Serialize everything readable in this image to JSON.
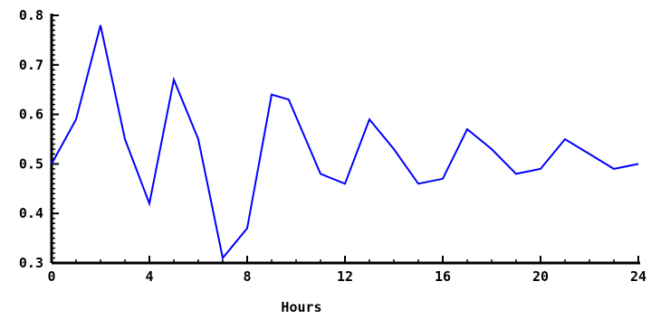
{
  "chart_data": {
    "type": "line",
    "title": "",
    "xlabel": "Hours",
    "ylabel": "",
    "xlim": [
      0,
      24
    ],
    "ylim": [
      0.3,
      0.8
    ],
    "x_ticks": [
      "0",
      "4",
      "8",
      "12",
      "16",
      "20",
      "24"
    ],
    "y_ticks": [
      "0.3",
      "0.4",
      "0.5",
      "0.6",
      "0.7",
      "0.8"
    ],
    "x_tick_values": [
      0,
      4,
      8,
      12,
      16,
      20,
      24
    ],
    "y_tick_values": [
      0.3,
      0.4,
      0.5,
      0.6,
      0.7,
      0.8
    ],
    "grid": false,
    "legend": "none",
    "line_color": "#0000ff",
    "axis_color": "#000000",
    "series": [
      {
        "x": [
          0,
          1,
          2,
          3,
          4,
          5,
          6,
          7,
          8,
          9,
          9.7,
          11,
          12,
          13,
          14,
          15,
          16,
          17,
          18,
          19,
          20,
          21,
          22,
          23,
          24
        ],
        "values": [
          0.5,
          0.59,
          0.78,
          0.55,
          0.42,
          0.67,
          0.55,
          0.31,
          0.37,
          0.64,
          0.63,
          0.48,
          0.46,
          0.59,
          0.53,
          0.46,
          0.47,
          0.57,
          0.53,
          0.48,
          0.49,
          0.55,
          0.52,
          0.49,
          0.5
        ]
      }
    ]
  }
}
